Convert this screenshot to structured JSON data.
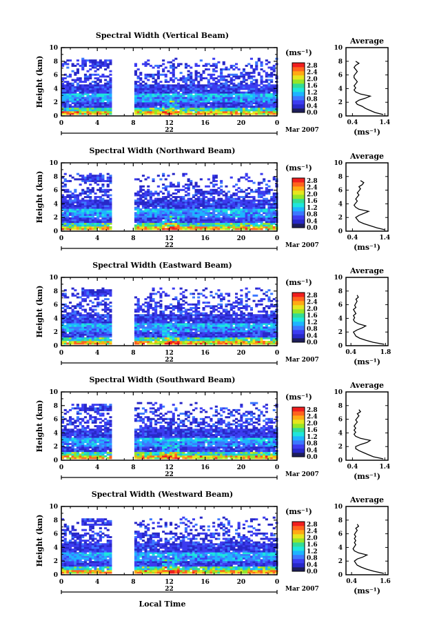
{
  "colorbar": {
    "unit_label": "(ms⁻¹)",
    "ticks": [
      "0.0",
      "0.4",
      "0.8",
      "1.2",
      "1.6",
      "2.0",
      "2.4",
      "2.8"
    ],
    "colors": [
      "#1e1e5a",
      "#2828c8",
      "#3c3cf0",
      "#3c78ff",
      "#1eb4ff",
      "#1ee6dc",
      "#32dc96",
      "#96e628",
      "#e6e61e",
      "#ffaa14",
      "#ff641e",
      "#f01e1e"
    ]
  },
  "date_label": "22",
  "month_label": "Mar 2007",
  "xlabel_bottom": "Local Time",
  "colors": {
    "axis": "#000000",
    "profile_line": "#000000"
  },
  "chart_data": [
    {
      "type": "heatmap",
      "title": "Spectral Width (Vertical Beam)",
      "ylabel": "Height (km)",
      "xticks": [
        "0",
        "4",
        "8",
        "12",
        "16",
        "20",
        "0"
      ],
      "xlim": [
        0,
        24
      ],
      "ylim": [
        0,
        10
      ],
      "yticks": [
        "0",
        "2",
        "4",
        "6",
        "8",
        "10"
      ],
      "data_gap_hours": [
        5.8,
        7.9
      ],
      "profile": {
        "title": "Average",
        "xlabel": "(ms⁻¹)",
        "xticks": [
          "0.4",
          "1.4"
        ],
        "xlim": [
          0.2,
          1.5
        ],
        "yticks": [
          "0",
          "2",
          "4",
          "6",
          "8",
          "10"
        ],
        "heights": [
          0.2,
          0.5,
          0.8,
          1.1,
          1.4,
          1.7,
          2.0,
          2.3,
          2.6,
          2.9,
          3.2,
          3.5,
          3.8,
          4.1,
          4.4,
          4.7,
          5.0,
          5.3,
          5.6,
          5.9,
          6.2,
          6.5,
          6.8,
          7.1,
          7.4,
          7.7,
          8.0
        ],
        "values": [
          1.35,
          1.1,
          0.95,
          0.8,
          0.7,
          0.55,
          0.5,
          0.6,
          0.8,
          0.95,
          0.65,
          0.5,
          0.45,
          0.5,
          0.45,
          0.5,
          0.55,
          0.5,
          0.45,
          0.45,
          0.5,
          0.55,
          0.5,
          0.45,
          0.5,
          0.6,
          0.5
        ]
      }
    },
    {
      "type": "heatmap",
      "title": "Spectral Width (Northward Beam)",
      "ylabel": "Height (km)",
      "xticks": [
        "0",
        "4",
        "8",
        "12",
        "16",
        "20",
        "0"
      ],
      "xlim": [
        0,
        24
      ],
      "ylim": [
        0,
        10
      ],
      "yticks": [
        "0",
        "2",
        "4",
        "6",
        "8",
        "10"
      ],
      "data_gap_hours": [
        5.8,
        7.9
      ],
      "profile": {
        "title": "Average",
        "xlabel": "(ms⁻¹)",
        "xticks": [
          "0.4",
          "1.4"
        ],
        "xlim": [
          0.2,
          1.5
        ],
        "yticks": [
          "0",
          "2",
          "4",
          "6",
          "8",
          "10"
        ],
        "heights": [
          0.2,
          0.5,
          0.8,
          1.1,
          1.4,
          1.7,
          2.0,
          2.3,
          2.6,
          2.9,
          3.2,
          3.5,
          3.8,
          4.1,
          4.4,
          4.7,
          5.0,
          5.3,
          5.6,
          5.9,
          6.2,
          6.5,
          6.8,
          7.1,
          7.4
        ],
        "values": [
          1.4,
          1.15,
          0.95,
          0.75,
          0.6,
          0.55,
          0.5,
          0.6,
          0.75,
          0.9,
          0.6,
          0.5,
          0.45,
          0.5,
          0.55,
          0.5,
          0.55,
          0.6,
          0.55,
          0.6,
          0.65,
          0.6,
          0.7,
          0.75,
          0.65
        ]
      }
    },
    {
      "type": "heatmap",
      "title": "Spectral Width (Eastward Beam)",
      "ylabel": "Height (km)",
      "xticks": [
        "0",
        "4",
        "8",
        "12",
        "16",
        "20",
        "0"
      ],
      "xlim": [
        0,
        24
      ],
      "ylim": [
        0,
        10
      ],
      "yticks": [
        "0",
        "2",
        "4",
        "6",
        "8",
        "10"
      ],
      "data_gap_hours": [
        5.8,
        7.9
      ],
      "profile": {
        "title": "Average",
        "xlabel": "(ms⁻¹)",
        "xticks": [
          "0.4",
          "1.8"
        ],
        "xlim": [
          0.2,
          1.9
        ],
        "yticks": [
          "0",
          "2",
          "4",
          "6",
          "8",
          "10"
        ],
        "heights": [
          0.2,
          0.5,
          0.8,
          1.1,
          1.4,
          1.7,
          2.0,
          2.3,
          2.6,
          2.9,
          3.2,
          3.5,
          3.8,
          4.1,
          4.4,
          4.7,
          5.0,
          5.3,
          5.6,
          5.9,
          6.2,
          6.5,
          6.8,
          7.1,
          7.4
        ],
        "values": [
          1.75,
          1.3,
          1.0,
          0.75,
          0.6,
          0.55,
          0.5,
          0.65,
          0.85,
          1.0,
          0.7,
          0.55,
          0.5,
          0.55,
          0.5,
          0.6,
          0.55,
          0.5,
          0.6,
          0.55,
          0.6,
          0.65,
          0.6,
          0.7,
          0.65
        ]
      }
    },
    {
      "type": "heatmap",
      "title": "Spectral Width (Southward Beam)",
      "ylabel": "Height (km)",
      "xticks": [
        "0",
        "4",
        "8",
        "12",
        "16",
        "20",
        "0"
      ],
      "xlim": [
        0,
        24
      ],
      "ylim": [
        0,
        10
      ],
      "yticks": [
        "0",
        "2",
        "4",
        "6",
        "8",
        "10"
      ],
      "data_gap_hours": [
        5.8,
        7.9
      ],
      "profile": {
        "title": "Average",
        "xlabel": "(ms⁻¹)",
        "xticks": [
          "0.4",
          "1.4"
        ],
        "xlim": [
          0.2,
          1.5
        ],
        "yticks": [
          "0",
          "2",
          "4",
          "6",
          "8",
          "10"
        ],
        "heights": [
          0.2,
          0.5,
          0.8,
          1.1,
          1.4,
          1.7,
          2.0,
          2.3,
          2.6,
          2.9,
          3.2,
          3.5,
          3.8,
          4.1,
          4.4,
          4.7,
          5.0,
          5.3,
          5.6,
          5.9,
          6.2,
          6.5,
          6.8,
          7.1,
          7.4
        ],
        "values": [
          1.35,
          1.05,
          0.9,
          0.75,
          0.6,
          0.5,
          0.5,
          0.65,
          0.85,
          0.95,
          0.65,
          0.5,
          0.45,
          0.5,
          0.45,
          0.5,
          0.45,
          0.5,
          0.55,
          0.5,
          0.55,
          0.6,
          0.55,
          0.65,
          0.6
        ]
      }
    },
    {
      "type": "heatmap",
      "title": "Spectral Width (Westward Beam)",
      "ylabel": "Height (km)",
      "xticks": [
        "0",
        "4",
        "8",
        "12",
        "16",
        "20",
        "0"
      ],
      "xlim": [
        0,
        24
      ],
      "ylim": [
        0,
        10
      ],
      "yticks": [
        "0",
        "2",
        "4",
        "6",
        "8",
        "10"
      ],
      "data_gap_hours": [
        5.8,
        7.9
      ],
      "profile": {
        "title": "Average",
        "xlabel": "(ms⁻¹)",
        "xticks": [
          "0.4",
          "1.6"
        ],
        "xlim": [
          0.2,
          1.7
        ],
        "yticks": [
          "0",
          "2",
          "4",
          "6",
          "8",
          "10"
        ],
        "heights": [
          0.2,
          0.5,
          0.8,
          1.1,
          1.4,
          1.7,
          2.0,
          2.3,
          2.6,
          2.9,
          3.2,
          3.5,
          3.8,
          4.1,
          4.4,
          4.7,
          5.0,
          5.3,
          5.6,
          5.9,
          6.2,
          6.5,
          6.8,
          7.1,
          7.4
        ],
        "values": [
          1.55,
          1.2,
          0.95,
          0.75,
          0.6,
          0.55,
          0.5,
          0.6,
          0.8,
          0.95,
          0.65,
          0.5,
          0.45,
          0.5,
          0.55,
          0.5,
          0.55,
          0.5,
          0.55,
          0.5,
          0.55,
          0.6,
          0.55,
          0.65,
          0.6
        ]
      }
    }
  ]
}
